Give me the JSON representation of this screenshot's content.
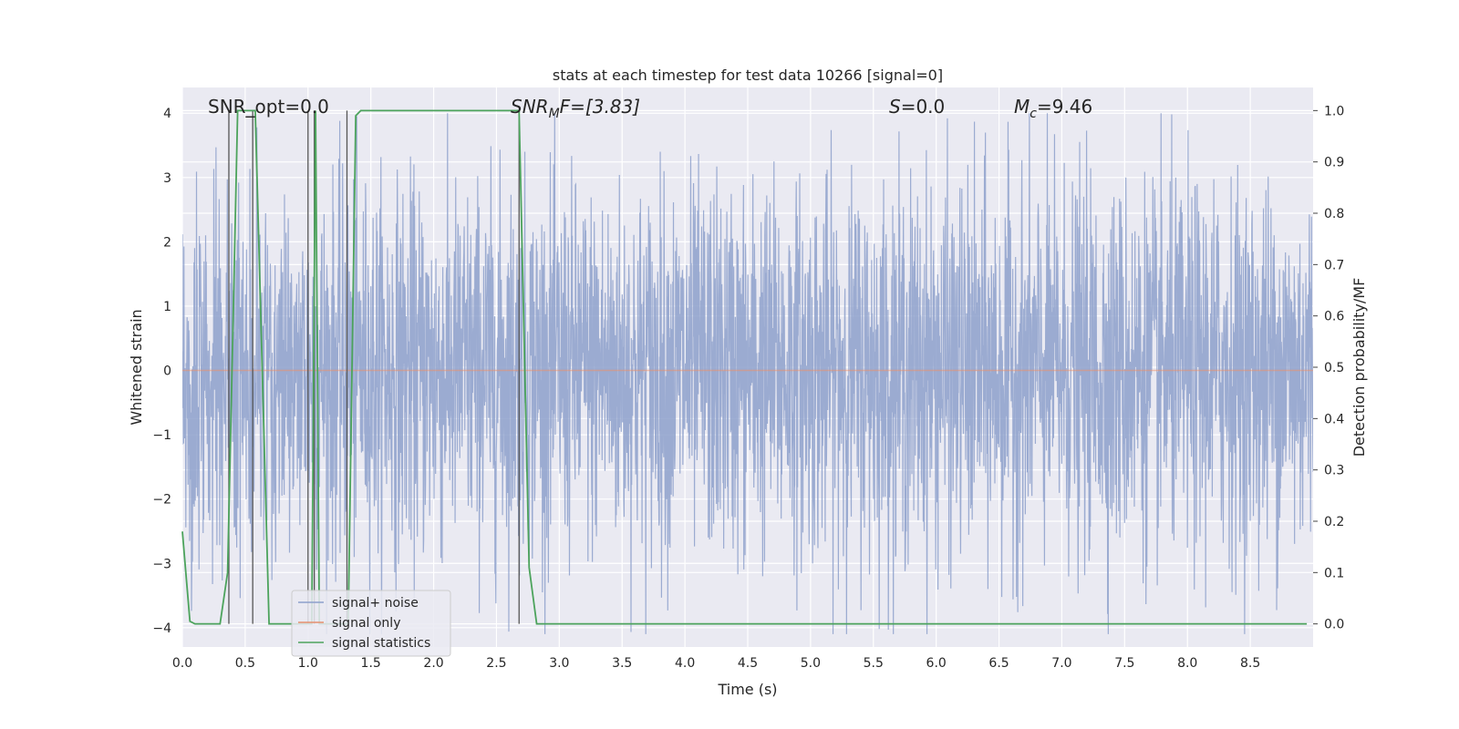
{
  "chart_data": {
    "type": "line",
    "title": "stats at each timestep for test data 10266 [signal=0]",
    "xlabel": "Time (s)",
    "ylabel": "Whitened strain",
    "y2label": "Detection probability/MF",
    "xlim": [
      0.0,
      9.0
    ],
    "ylim": [
      -4.3,
      4.4
    ],
    "y2lim": [
      -0.045,
      1.045
    ],
    "x_ticks": [
      "0.0",
      "0.5",
      "1.0",
      "1.5",
      "2.0",
      "2.5",
      "3.0",
      "3.5",
      "4.0",
      "4.5",
      "5.0",
      "5.5",
      "6.0",
      "6.5",
      "7.0",
      "7.5",
      "8.0",
      "8.5"
    ],
    "y_ticks": [
      "4",
      "3",
      "2",
      "1",
      "0",
      "−1",
      "−2",
      "−3",
      "−4"
    ],
    "y2_ticks": [
      "1.0",
      "0.9",
      "0.8",
      "0.7",
      "0.6",
      "0.5",
      "0.4",
      "0.3",
      "0.2",
      "0.1",
      "0.0"
    ],
    "grid": true,
    "legend_position": "lower-left",
    "colors": {
      "background": "#eaeaf2",
      "grid": "#ffffff",
      "noise": "#8da0cb",
      "signal": "#e5906f",
      "stats": "#4ca35c",
      "vlines": "#555555"
    },
    "series": [
      {
        "name": "signal+ noise",
        "kind": "noise",
        "range": [
          -4.1,
          4.0
        ],
        "typical_amplitude": 1.5
      },
      {
        "name": "signal only",
        "kind": "line",
        "values": [
          0,
          0
        ]
      },
      {
        "name": "signal statistics",
        "kind": "line",
        "axis": "right",
        "x": [
          0.0,
          0.06,
          0.1,
          0.3,
          0.36,
          0.44,
          0.55,
          0.58,
          0.69,
          1.0,
          1.03,
          1.06,
          1.09,
          1.11,
          1.32,
          1.38,
          1.42,
          2.5,
          2.68,
          2.76,
          2.82,
          8.95
        ],
        "values": [
          0.18,
          0.005,
          0.0,
          0.0,
          0.1,
          1.0,
          1.0,
          1.0,
          0.0,
          0.0,
          0.0,
          1.0,
          0.0,
          0.0,
          0.0,
          0.99,
          1.0,
          1.0,
          1.0,
          0.11,
          0.0,
          0.0
        ]
      }
    ],
    "vertical_lines_x": [
      0.37,
      0.56,
      1.0,
      1.05,
      1.31,
      2.68
    ],
    "annotations": [
      {
        "pre": "SNR_opt=0.0",
        "sub": "",
        "post": ""
      },
      {
        "pre": "SNR",
        "sub": "M",
        "post": "F=[3.83]"
      },
      {
        "pre": "S",
        "sub": "",
        "post": "=0.0"
      },
      {
        "pre": "M",
        "sub": "c",
        "post": "=9.46"
      }
    ]
  }
}
